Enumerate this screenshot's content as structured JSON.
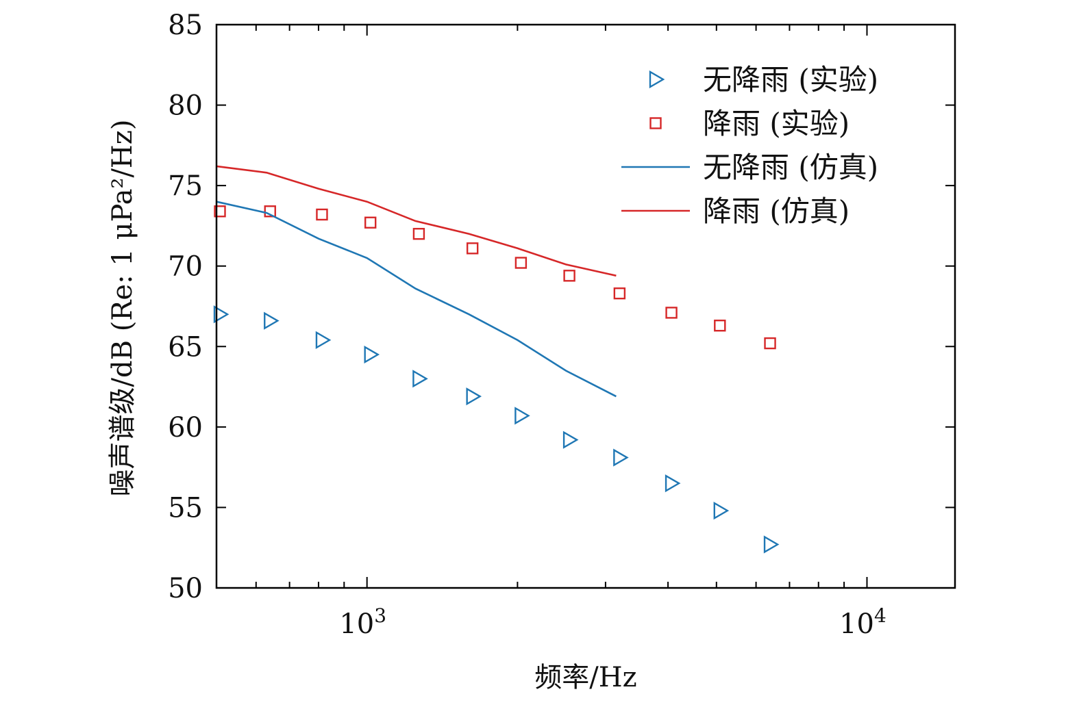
{
  "chart_data": {
    "type": "line",
    "title": "",
    "xlabel": "频率/Hz",
    "ylabel": "噪声谱级/dB (Re: 1 μPa²/Hz)",
    "xscale": "log",
    "xlim": [
      500,
      15000
    ],
    "ylim": [
      50,
      85
    ],
    "yticks": [
      50,
      55,
      60,
      65,
      70,
      75,
      80,
      85
    ],
    "xticks": [
      {
        "value": 1000,
        "base": "10",
        "exp": "3"
      },
      {
        "value": 10000,
        "base": "10",
        "exp": "4"
      }
    ],
    "legend_position": "top-right",
    "grid": false,
    "series": [
      {
        "name": "无降雨 (实验)",
        "kind": "marker",
        "marker": "triangle-right",
        "color": "#1f77b4",
        "x": [
          500,
          630,
          800,
          1000,
          1250,
          1600,
          2000,
          2500,
          3150,
          4000,
          5000,
          6300
        ],
        "y": [
          67.0,
          66.6,
          65.4,
          64.5,
          63.0,
          61.9,
          60.7,
          59.2,
          58.1,
          56.5,
          54.8,
          52.7
        ]
      },
      {
        "name": "降雨 (实验)",
        "kind": "marker",
        "marker": "square",
        "color": "#d62728",
        "x": [
          500,
          630,
          800,
          1000,
          1250,
          1600,
          2000,
          2500,
          3150,
          4000,
          5000,
          6300
        ],
        "y": [
          73.4,
          73.4,
          73.2,
          72.7,
          72.0,
          71.1,
          70.2,
          69.4,
          68.3,
          67.1,
          66.3,
          65.2
        ]
      },
      {
        "name": "无降雨 (仿真)",
        "kind": "line",
        "color": "#1f77b4",
        "x": [
          500,
          630,
          800,
          1000,
          1250,
          1600,
          2000,
          2500,
          3150
        ],
        "y": [
          74.0,
          73.3,
          71.7,
          70.5,
          68.6,
          67.0,
          65.4,
          63.5,
          61.9
        ]
      },
      {
        "name": "降雨 (仿真)",
        "kind": "line",
        "color": "#d62728",
        "x": [
          500,
          630,
          800,
          1000,
          1250,
          1600,
          2000,
          2500,
          3150
        ],
        "y": [
          76.2,
          75.8,
          74.8,
          74.0,
          72.8,
          72.0,
          71.1,
          70.1,
          69.4
        ]
      }
    ]
  }
}
